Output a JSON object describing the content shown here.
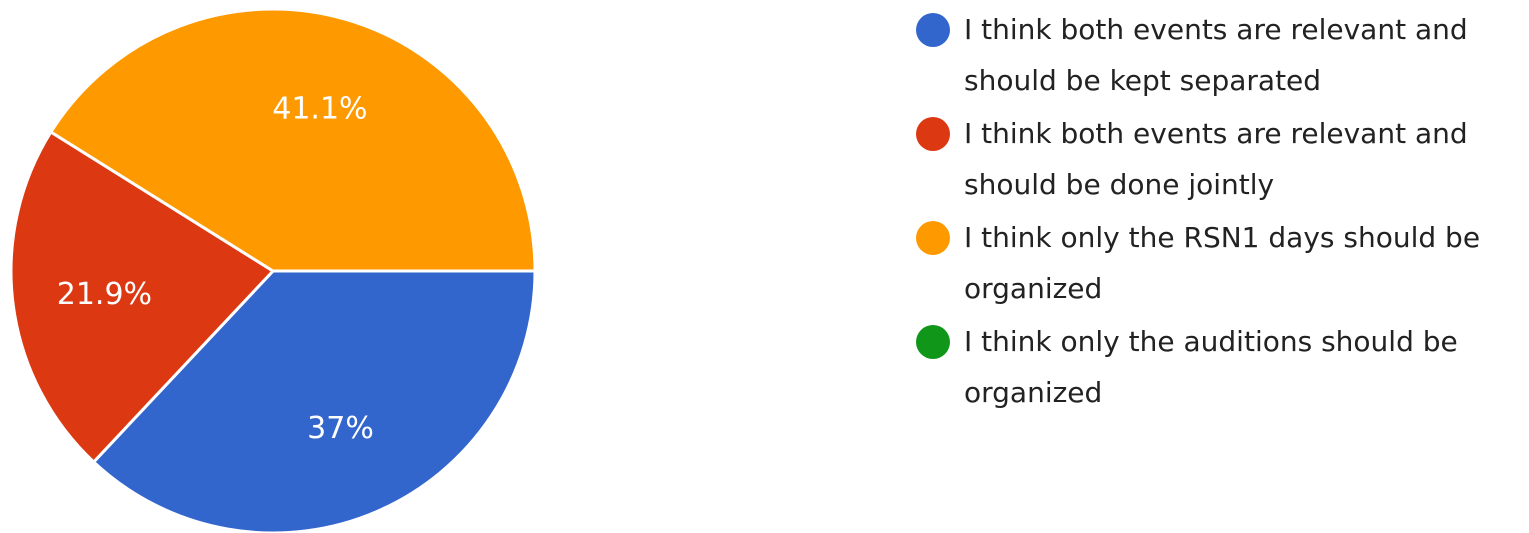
{
  "chart_data": {
    "type": "pie",
    "slices": [
      {
        "label": "I think both events are relevant and should be kept separated",
        "value": 37,
        "value_label": "37%",
        "color": "#3366cc"
      },
      {
        "label": "I think both events are relevant and should be done jointly",
        "value": 21.9,
        "value_label": "21.9%",
        "color": "#dc3912"
      },
      {
        "label": "I think only the RSN1 days should be organized",
        "value": 41.1,
        "value_label": "41.1%",
        "color": "#ff9900"
      },
      {
        "label": "I think only the auditions should be organized",
        "value": 0,
        "value_label": "",
        "color": "#109618"
      }
    ],
    "legend_position": "right",
    "start_angle_deg": 90,
    "direction": "clockwise"
  }
}
